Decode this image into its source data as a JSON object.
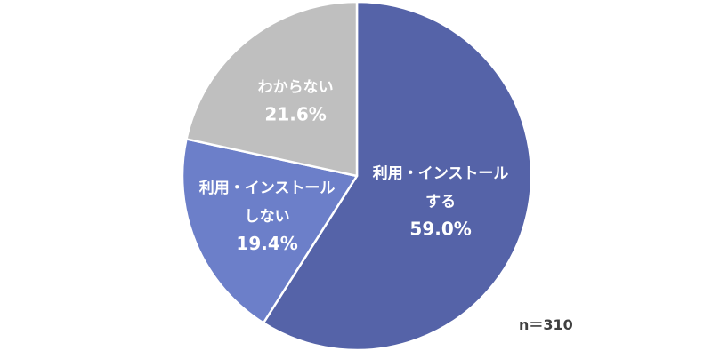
{
  "chart_data": {
    "type": "pie",
    "slices": [
      {
        "name": "利用・インストールする",
        "label_lines": [
          "利用・インストール",
          "する"
        ],
        "value": 59.0,
        "value_label": "59.0%",
        "color": "#5563A8"
      },
      {
        "name": "利用・インストールしない",
        "label_lines": [
          "利用・インストール",
          "しない"
        ],
        "value": 19.4,
        "value_label": "19.4%",
        "color": "#6C7FC9"
      },
      {
        "name": "わからない",
        "label_lines": [
          "わからない"
        ],
        "value": 21.6,
        "value_label": "21.6%",
        "color": "#BFBFBF"
      }
    ],
    "start_angle": "12 o'clock",
    "direction": "clockwise",
    "legend": "none",
    "label_color": "#FFFFFF",
    "border_color": "#FFFFFF"
  },
  "note": {
    "sample_size": "n＝310"
  }
}
